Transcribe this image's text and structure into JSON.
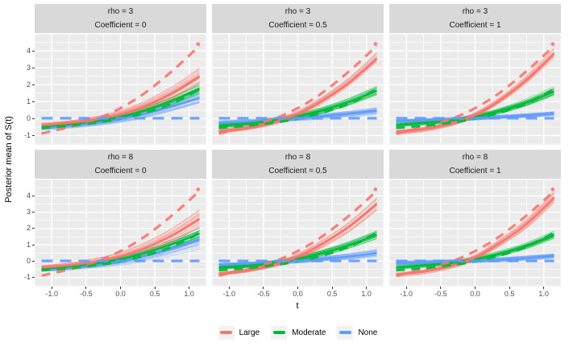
{
  "chart_data": {
    "type": "line",
    "description": "Faceted spaghetti plot of posterior mean curves by rho and Coefficient",
    "xlabel": "t",
    "ylabel": "Posterior mean of S(t)",
    "xlim": [
      -1.25,
      1.25
    ],
    "ylim": [
      -1.55,
      5.05
    ],
    "grid": true,
    "x_ticks": [
      -1.0,
      -0.5,
      0.0,
      0.5,
      1.0
    ],
    "x_tick_labels": [
      "-1.0",
      "-0.5",
      "0.0",
      "0.5",
      "1.0"
    ],
    "x_minor_gridlines": [
      -1.25,
      -0.75,
      -0.25,
      0.25,
      0.75,
      1.25
    ],
    "y_ticks": [
      4,
      3,
      2,
      1,
      0,
      -1
    ],
    "y_tick_labels": [
      "4",
      "3",
      "2",
      "1",
      "0",
      "-1"
    ],
    "y_major_gridlines": [
      -1,
      0,
      1,
      2,
      3,
      4,
      5
    ],
    "y_minor_gridlines": [
      -1.5,
      -0.5,
      0.5,
      1.5,
      2.5,
      3.5,
      4.5
    ],
    "colors": {
      "large": "#F8766D",
      "moderate": "#00BA38",
      "none": "#619CFF",
      "panel_bg": "#EBEBEB",
      "strip_bg": "#D9D9D9",
      "gridline": "#FFFFFF",
      "tick_text": "#4D4D4D",
      "tick_mark": "#333333",
      "legend_key_bg": "#F2F2F2"
    },
    "legend": {
      "position": "bottom",
      "entries": [
        {
          "label": "Large",
          "color": "#F8766D"
        },
        {
          "label": "Moderate",
          "color": "#00BA38"
        },
        {
          "label": "None",
          "color": "#619CFF"
        }
      ]
    },
    "x_sample": [
      -1.15,
      -0.75,
      -0.35,
      0.0,
      0.35,
      0.75,
      1.15
    ],
    "truth_curves": [
      {
        "name": "Large",
        "color": "#F8766D",
        "dash": "11 8",
        "values": [
          -0.88,
          -0.5,
          -0.02,
          0.62,
          1.5,
          2.8,
          4.3
        ]
      },
      {
        "name": "Moderate",
        "color": "#00BA38",
        "dash": "11 8",
        "values": [
          -0.55,
          -0.42,
          -0.24,
          0.0,
          0.34,
          0.89,
          1.73
        ]
      },
      {
        "name": "None",
        "color": "#619CFF",
        "dash": "14 9",
        "values": [
          0.02,
          0.02,
          0.02,
          0.02,
          0.02,
          0.02,
          0.02
        ]
      }
    ],
    "endpoint_marker": {
      "series": "Large",
      "x": 1.13,
      "y": 4.4,
      "color": "#F8766D"
    },
    "panels": [
      {
        "strip_line1": "rho = 3",
        "strip_line2": "Coefficient = 0",
        "series": [
          {
            "name": "None",
            "color": "#619CFF",
            "mean": [
              -0.55,
              -0.42,
              -0.24,
              -0.02,
              0.28,
              0.72,
              1.22
            ],
            "spread_end": 0.38
          },
          {
            "name": "Moderate",
            "color": "#00BA38",
            "mean": [
              -0.45,
              -0.32,
              -0.14,
              0.1,
              0.48,
              1.05,
              1.75
            ],
            "spread_end": 0.28
          },
          {
            "name": "Large",
            "color": "#F8766D",
            "mean": [
              -0.38,
              -0.25,
              -0.04,
              0.26,
              0.74,
              1.5,
              2.5
            ],
            "spread_end": 0.42
          }
        ]
      },
      {
        "strip_line1": "rho = 3",
        "strip_line2": "Coefficient = 0.5",
        "series": [
          {
            "name": "None",
            "color": "#619CFF",
            "mean": [
              -0.25,
              -0.18,
              -0.09,
              0.01,
              0.13,
              0.28,
              0.46
            ],
            "spread_end": 0.18
          },
          {
            "name": "Moderate",
            "color": "#00BA38",
            "mean": [
              -0.42,
              -0.3,
              -0.11,
              0.14,
              0.48,
              1.0,
              1.65
            ],
            "spread_end": 0.22
          },
          {
            "name": "Large",
            "color": "#F8766D",
            "mean": [
              -0.75,
              -0.55,
              -0.22,
              0.28,
              1.05,
              2.15,
              3.55
            ],
            "spread_end": 0.28
          }
        ]
      },
      {
        "strip_line1": "rho = 3",
        "strip_line2": "Coefficient = 1",
        "series": [
          {
            "name": "None",
            "color": "#619CFF",
            "mean": [
              -0.15,
              -0.1,
              -0.04,
              0.02,
              0.09,
              0.18,
              0.3
            ],
            "spread_end": 0.12
          },
          {
            "name": "Moderate",
            "color": "#00BA38",
            "mean": [
              -0.38,
              -0.27,
              -0.11,
              0.11,
              0.44,
              0.95,
              1.6
            ],
            "spread_end": 0.22
          },
          {
            "name": "Large",
            "color": "#F8766D",
            "mean": [
              -0.8,
              -0.62,
              -0.3,
              0.22,
              1.05,
              2.3,
              3.85
            ],
            "spread_end": 0.2
          }
        ]
      },
      {
        "strip_line1": "rho = 8",
        "strip_line2": "Coefficient = 0",
        "series": [
          {
            "name": "None",
            "color": "#619CFF",
            "mean": [
              -0.52,
              -0.4,
              -0.2,
              0.02,
              0.33,
              0.78,
              1.32
            ],
            "spread_end": 0.42
          },
          {
            "name": "Moderate",
            "color": "#00BA38",
            "mean": [
              -0.45,
              -0.31,
              -0.12,
              0.13,
              0.5,
              1.05,
              1.7
            ],
            "spread_end": 0.33
          },
          {
            "name": "Large",
            "color": "#F8766D",
            "mean": [
              -0.38,
              -0.24,
              -0.02,
              0.3,
              0.8,
              1.58,
              2.6
            ],
            "spread_end": 0.5
          }
        ]
      },
      {
        "strip_line1": "rho = 8",
        "strip_line2": "Coefficient = 0.5",
        "series": [
          {
            "name": "None",
            "color": "#619CFF",
            "mean": [
              -0.22,
              -0.15,
              -0.07,
              0.02,
              0.14,
              0.3,
              0.5
            ],
            "spread_end": 0.2
          },
          {
            "name": "Moderate",
            "color": "#00BA38",
            "mean": [
              -0.4,
              -0.29,
              -0.1,
              0.15,
              0.5,
              1.0,
              1.62
            ],
            "spread_end": 0.22
          },
          {
            "name": "Large",
            "color": "#F8766D",
            "mean": [
              -0.78,
              -0.57,
              -0.22,
              0.28,
              1.05,
              2.12,
              3.5
            ],
            "spread_end": 0.3
          }
        ]
      },
      {
        "strip_line1": "rho = 8",
        "strip_line2": "Coefficient = 1",
        "series": [
          {
            "name": "None",
            "color": "#619CFF",
            "mean": [
              -0.12,
              -0.07,
              -0.02,
              0.03,
              0.1,
              0.2,
              0.33
            ],
            "spread_end": 0.12
          },
          {
            "name": "Moderate",
            "color": "#00BA38",
            "mean": [
              -0.38,
              -0.26,
              -0.1,
              0.12,
              0.45,
              0.94,
              1.6
            ],
            "spread_end": 0.2
          },
          {
            "name": "Large",
            "color": "#F8766D",
            "mean": [
              -0.82,
              -0.63,
              -0.3,
              0.23,
              1.08,
              2.28,
              3.9
            ],
            "spread_end": 0.22
          }
        ]
      }
    ]
  }
}
